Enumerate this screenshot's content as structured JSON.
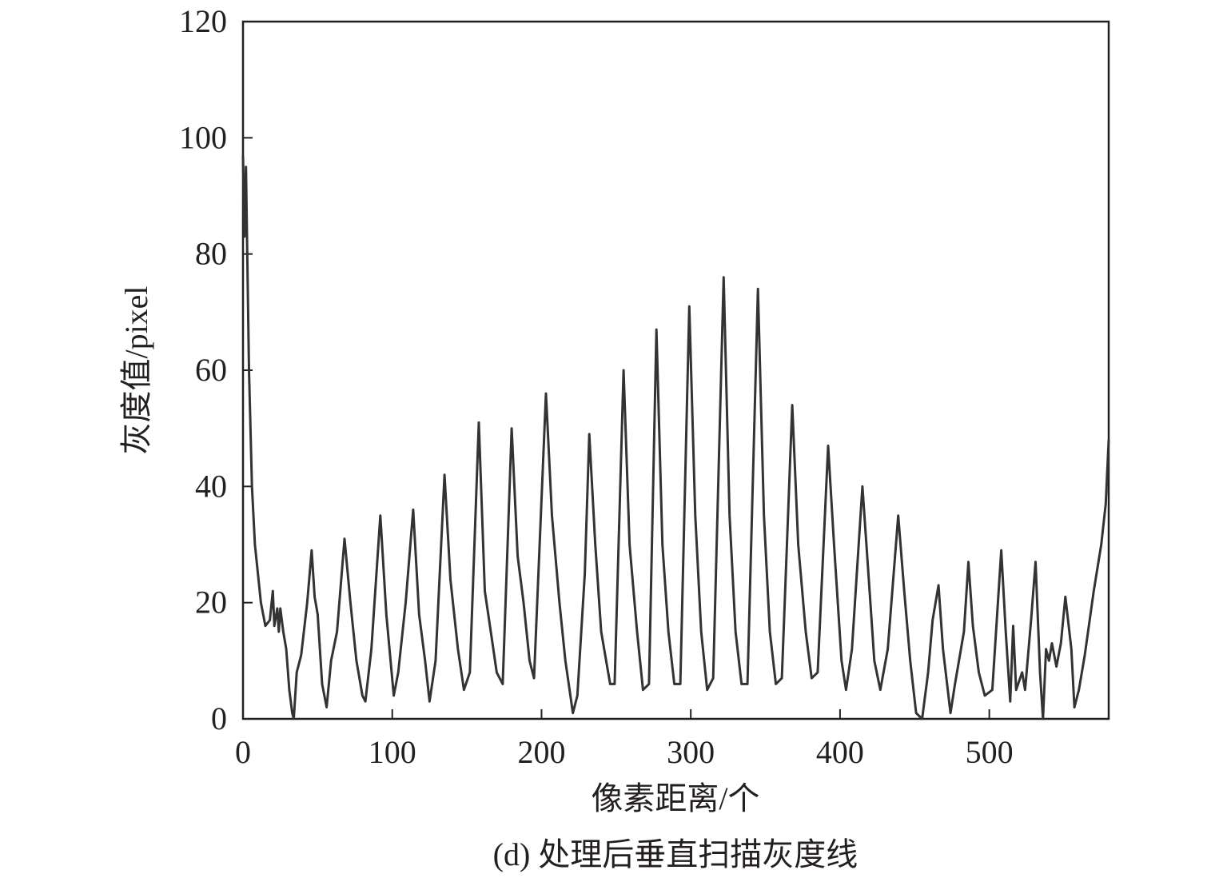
{
  "chart_data": {
    "type": "line",
    "caption": "(d) 处理后垂直扫描灰度线",
    "xlabel": "像素距离/个",
    "ylabel": "灰度值/pixel",
    "xlim": [
      0,
      580
    ],
    "xticks": [
      0,
      100,
      200,
      300,
      400,
      500
    ],
    "ylim": [
      0,
      120
    ],
    "yticks": [
      0,
      20,
      40,
      60,
      80,
      100,
      120
    ],
    "grid": false,
    "series": [
      {
        "color": "#333333",
        "x": [
          0,
          1,
          2,
          4,
          6,
          8,
          12,
          15,
          18,
          20,
          21,
          23,
          24,
          25,
          27,
          29,
          31,
          33,
          34,
          36,
          39,
          43,
          46,
          48,
          50,
          53,
          56,
          59,
          63,
          68,
          72,
          76,
          80,
          82,
          86,
          92,
          96,
          101,
          104,
          109,
          114,
          118,
          122,
          125,
          129,
          135,
          139,
          144,
          148,
          152,
          158,
          162,
          166,
          170,
          174,
          180,
          184,
          188,
          192,
          195,
          203,
          207,
          212,
          216,
          221,
          224,
          229,
          232,
          236,
          240,
          246,
          249,
          255,
          259,
          264,
          268,
          272,
          277,
          281,
          285,
          289,
          293,
          299,
          303,
          307,
          311,
          315,
          322,
          326,
          330,
          334,
          338,
          345,
          349,
          353,
          357,
          361,
          368,
          372,
          377,
          381,
          385,
          392,
          396,
          401,
          404,
          408,
          415,
          419,
          423,
          427,
          432,
          439,
          443,
          447,
          451,
          455,
          459,
          462,
          466,
          469,
          474,
          477,
          483,
          486,
          489,
          493,
          497,
          502,
          508,
          511,
          514,
          516,
          518,
          522,
          524,
          528,
          531,
          534,
          536,
          538,
          540,
          542,
          545,
          548,
          551,
          555,
          557,
          560,
          564,
          570,
          575,
          578,
          580
        ],
        "values": [
          97,
          83,
          95,
          60,
          40,
          30,
          20,
          16,
          17,
          22,
          16,
          19,
          15,
          19,
          15,
          12,
          5,
          1,
          0,
          8,
          11,
          20,
          29,
          21,
          18,
          6,
          2,
          10,
          15,
          31,
          20,
          10,
          4,
          3,
          12,
          35,
          18,
          4,
          8,
          20,
          36,
          18,
          10,
          3,
          10,
          42,
          24,
          12,
          5,
          8,
          51,
          22,
          15,
          8,
          6,
          50,
          28,
          20,
          10,
          7,
          56,
          35,
          20,
          10,
          1,
          4,
          25,
          49,
          30,
          15,
          6,
          6,
          60,
          30,
          15,
          5,
          6,
          67,
          30,
          15,
          6,
          6,
          71,
          35,
          15,
          5,
          7,
          76,
          35,
          15,
          6,
          6,
          74,
          35,
          15,
          6,
          7,
          54,
          30,
          15,
          7,
          8,
          47,
          30,
          10,
          5,
          12,
          40,
          25,
          10,
          5,
          12,
          35,
          22,
          10,
          1,
          0,
          8,
          17,
          23,
          12,
          1,
          6,
          15,
          27,
          16,
          8,
          4,
          5,
          29,
          15,
          3,
          16,
          5,
          8,
          5,
          17,
          27,
          8,
          0,
          12,
          10,
          13,
          9,
          13,
          21,
          12,
          2,
          5,
          11,
          22,
          30,
          37,
          48
        ]
      }
    ]
  }
}
